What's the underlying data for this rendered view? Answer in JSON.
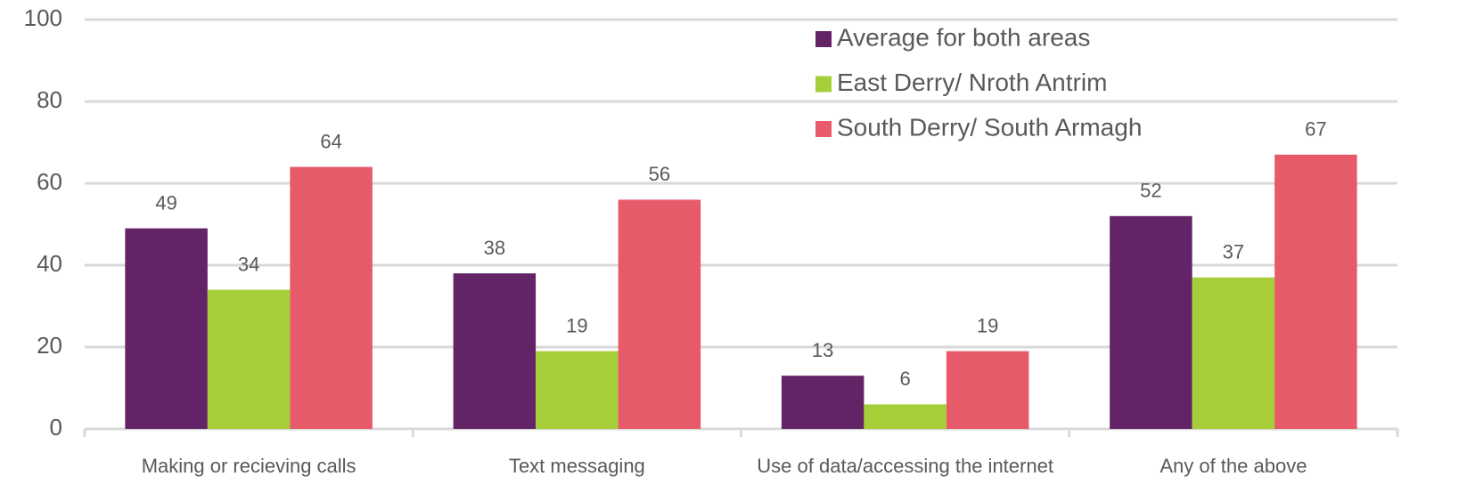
{
  "chart_data": {
    "type": "bar",
    "categories": [
      "Making or recieving calls",
      "Text messaging",
      "Use of data/accessing the internet",
      "Any of the above"
    ],
    "series": [
      {
        "name": "Average for both areas",
        "color": "#622466",
        "values": [
          49,
          38,
          13,
          52
        ]
      },
      {
        "name": "East Derry/ Nroth Antrim",
        "color": "#a6ce39",
        "values": [
          34,
          19,
          6,
          37
        ]
      },
      {
        "name": "South Derry/ South Armagh",
        "color": "#e75a6a",
        "values": [
          64,
          56,
          19,
          67
        ]
      }
    ],
    "ylim": [
      0,
      100
    ],
    "yticks": [
      0,
      20,
      40,
      60,
      80,
      100
    ],
    "grid": true,
    "legend": "top-right"
  }
}
